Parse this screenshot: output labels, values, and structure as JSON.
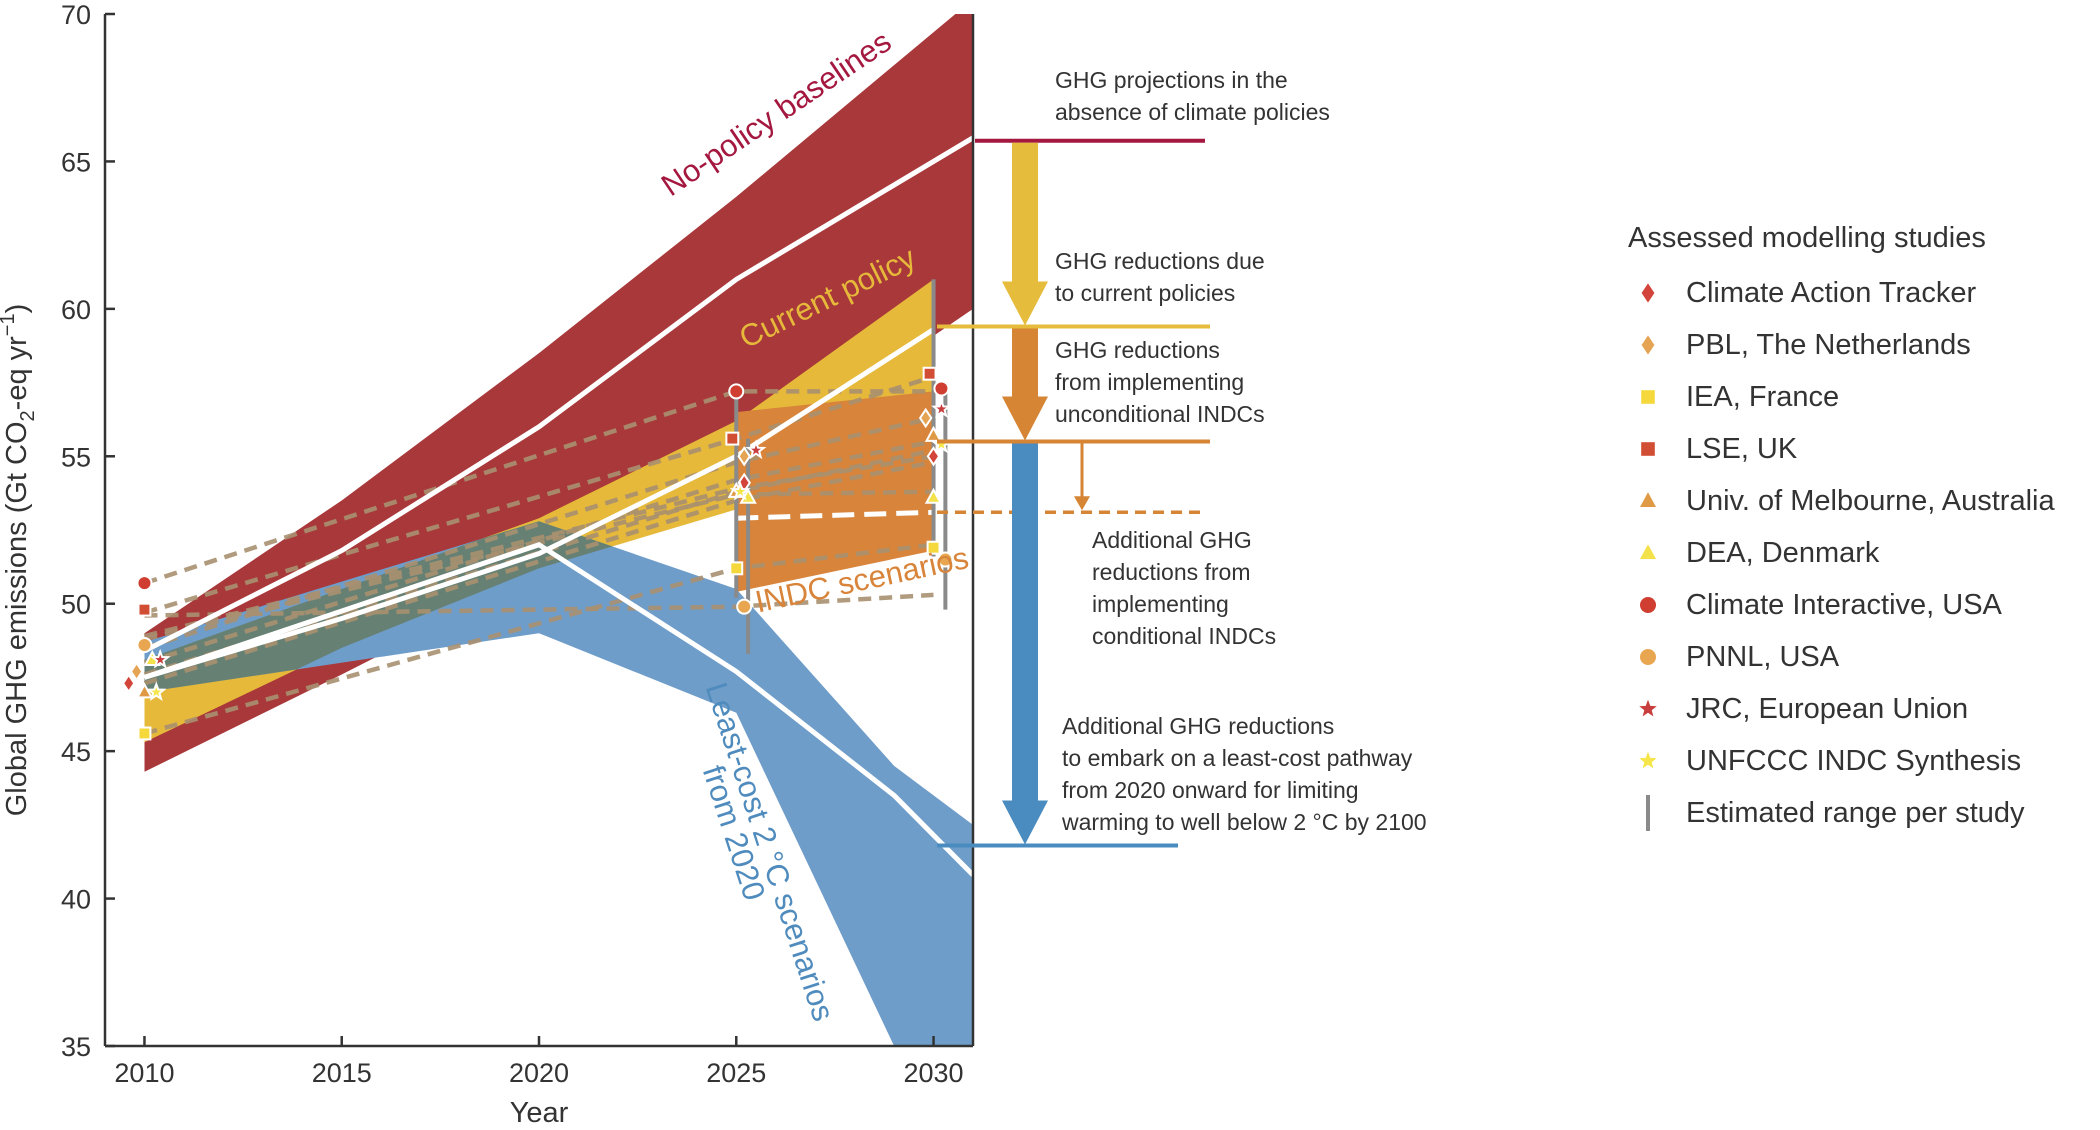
{
  "colors": {
    "no_policy": "#a9383b",
    "current_policy": "#e6b93a",
    "indc": "#d8843a",
    "least_cost": "#6f9dc9",
    "overlap": "#5f6a2e",
    "dash": "#a99070",
    "axis": "#333333",
    "reference_line": "#a4173f",
    "arrow_yellow": "#e5bc3c",
    "arrow_orange": "#d58534",
    "arrow_blue": "#4a8cbf",
    "range_bar": "#8a8a8a"
  },
  "chart_data": {
    "type": "area",
    "xlabel": "Year",
    "ylabel_main": "Global GHG emissions (Gt CO",
    "ylabel_sub": "2",
    "ylabel_mid": "-eq yr",
    "ylabel_sup": "−1",
    "ylabel_end": ")",
    "xlim": [
      2009,
      2031
    ],
    "ylim": [
      35,
      70
    ],
    "x_ticks": [
      2010,
      2015,
      2020,
      2025,
      2030
    ],
    "y_ticks": [
      35,
      40,
      45,
      50,
      55,
      60,
      65,
      70
    ],
    "bands": [
      {
        "name": "No-policy baselines",
        "x": [
          2010,
          2015,
          2020,
          2025,
          2031
        ],
        "low": [
          44.3,
          47.6,
          51.0,
          54.5,
          60.0
        ],
        "high": [
          49.0,
          53.5,
          58.5,
          63.8,
          70.5
        ],
        "median": [
          48.4,
          51.8,
          56.0,
          61.0,
          65.8
        ]
      },
      {
        "name": "Current policy",
        "x": [
          2010,
          2015,
          2020,
          2025,
          2030
        ],
        "low": [
          45.3,
          48.5,
          51.2,
          53.2,
          55.0
        ],
        "high": [
          48.1,
          50.5,
          52.9,
          56.2,
          61.0
        ],
        "median": [
          47.5,
          49.5,
          51.7,
          55.0,
          59.3
        ]
      },
      {
        "name": "INDC scenarios",
        "x": [
          2025,
          2030
        ],
        "low": [
          50.4,
          51.8
        ],
        "high": [
          56.5,
          57.2
        ],
        "median": [
          52.9,
          53.1
        ]
      },
      {
        "name": "Least-cost 2 °C scenarios from 2020",
        "x": [
          2010,
          2020,
          2025,
          2029,
          2031
        ],
        "low": [
          47.0,
          49.0,
          46.3,
          35.0,
          35.0
        ],
        "high": [
          48.7,
          52.8,
          50.5,
          44.5,
          42.5
        ],
        "median": [
          47.5,
          52.0,
          47.7,
          43.5,
          40.8
        ]
      }
    ],
    "study_lines": [
      {
        "x": [
          2010,
          2025,
          2030
        ],
        "y": [
          50.7,
          57.2,
          57.2
        ]
      },
      {
        "x": [
          2010,
          2025,
          2030
        ],
        "y": [
          49.7,
          55.6,
          57.7
        ]
      },
      {
        "x": [
          2010,
          2025,
          2030
        ],
        "y": [
          48.5,
          54.8,
          56.3
        ]
      },
      {
        "x": [
          2010,
          2025,
          2030
        ],
        "y": [
          48.0,
          54.2,
          55.5
        ]
      },
      {
        "x": [
          2010,
          2025,
          2030
        ],
        "y": [
          47.6,
          53.8,
          55.2
        ]
      },
      {
        "x": [
          2010,
          2025,
          2030
        ],
        "y": [
          47.3,
          53.5,
          54.8
        ]
      },
      {
        "x": [
          2010,
          2025,
          2030
        ],
        "y": [
          45.6,
          51.2,
          52.0
        ]
      },
      {
        "x": [
          2010,
          2025,
          2030
        ],
        "y": [
          49.6,
          49.9,
          50.3
        ]
      },
      {
        "x": [
          2010,
          2025,
          2030
        ],
        "y": [
          48.8,
          53.7,
          53.8
        ]
      },
      {
        "x": [
          2010,
          2025,
          2030
        ],
        "y": [
          48.9,
          53.9,
          55.0
        ]
      }
    ],
    "ranges": [
      {
        "x": 2025,
        "low": 50.2,
        "high": 57.0
      },
      {
        "x": 2025.3,
        "low": 48.3,
        "high": 55.6
      },
      {
        "x": 2030,
        "low": 51.6,
        "high": 61.0
      },
      {
        "x": 2030.3,
        "low": 49.8,
        "high": 57.3
      }
    ],
    "studies": [
      {
        "name": "Climate Action Tracker",
        "marker": "diamond",
        "color": "#d3453a",
        "points": [
          [
            2009.6,
            47.3
          ],
          [
            2025.2,
            54.1
          ],
          [
            2030.0,
            55.0
          ]
        ]
      },
      {
        "name": "PBL, The Netherlands",
        "marker": "diamond",
        "color": "#e5a454",
        "points": [
          [
            2009.8,
            47.7
          ],
          [
            2025.2,
            55.0
          ],
          [
            2029.8,
            56.3
          ]
        ]
      },
      {
        "name": "IEA, France",
        "marker": "square",
        "color": "#f5d83c",
        "points": [
          [
            2010,
            45.6
          ],
          [
            2025,
            51.2
          ],
          [
            2030,
            51.9
          ]
        ]
      },
      {
        "name": "LSE, UK",
        "marker": "square",
        "color": "#d14d33",
        "points": [
          [
            2010,
            49.8
          ],
          [
            2024.9,
            55.6
          ],
          [
            2029.9,
            57.8
          ]
        ]
      },
      {
        "name": "Univ. of Melbourne, Australia",
        "marker": "triangle",
        "color": "#e09a45",
        "points": [
          [
            2010,
            47.0
          ],
          [
            2025,
            53.8
          ],
          [
            2030,
            55.7
          ]
        ]
      },
      {
        "name": "DEA, Denmark",
        "marker": "triangle",
        "color": "#f4e24a",
        "points": [
          [
            2010.2,
            48.1
          ],
          [
            2025.3,
            53.6
          ],
          [
            2030,
            53.6
          ]
        ]
      },
      {
        "name": "Climate Interactive, USA",
        "marker": "circle",
        "color": "#d03d31",
        "points": [
          [
            2010,
            50.7
          ],
          [
            2025,
            57.2
          ],
          [
            2030.2,
            57.3
          ]
        ]
      },
      {
        "name": "PNNL, USA",
        "marker": "circle",
        "color": "#e9a651",
        "points": [
          [
            2010,
            48.6
          ],
          [
            2025.2,
            49.9
          ],
          [
            2030.3,
            51.5
          ]
        ]
      },
      {
        "name": "JRC, European Union",
        "marker": "star",
        "color": "#c83d3d",
        "points": [
          [
            2010.4,
            48.1
          ],
          [
            2025.5,
            55.2
          ],
          [
            2030.2,
            56.6
          ]
        ]
      },
      {
        "name": "UNFCCC INDC Synthesis",
        "marker": "star",
        "color": "#f6e64c",
        "points": [
          [
            2010.3,
            47.0
          ],
          [
            2025.1,
            53.8
          ],
          [
            2030.2,
            55.4
          ]
        ]
      }
    ],
    "band_labels": [
      "No-policy baselines",
      "Current policy",
      "INDC scenarios",
      "Least-cost 2 °C scenarios",
      "from 2020"
    ],
    "reference_levels": [
      {
        "name": "no_policy_2030",
        "y": 65.7
      },
      {
        "name": "current_policy_2030",
        "y": 59.4
      },
      {
        "name": "unconditional_indc_2030",
        "y": 55.5
      },
      {
        "name": "conditional_indc_2030",
        "y": 53.1
      },
      {
        "name": "least_cost_2030",
        "y": 41.8
      }
    ]
  },
  "annotations": [
    {
      "id": "no_policy",
      "lines": [
        "GHG projections in the",
        "absence of climate policies"
      ]
    },
    {
      "id": "current",
      "lines": [
        "GHG reductions due",
        "to current policies"
      ]
    },
    {
      "id": "unconditional",
      "lines": [
        "GHG reductions",
        "from implementing",
        "unconditional INDCs"
      ]
    },
    {
      "id": "conditional",
      "lines": [
        "Additional GHG",
        "reductions from",
        "implementing",
        "conditional INDCs"
      ]
    },
    {
      "id": "least_cost",
      "lines": [
        "Additional GHG reductions",
        "to embark on a least-cost pathway",
        "from 2020 onward for limiting",
        "warming to well below 2 °C by 2100"
      ]
    }
  ],
  "legend": {
    "title": "Assessed modelling studies",
    "range_label": "Estimated range per study"
  }
}
